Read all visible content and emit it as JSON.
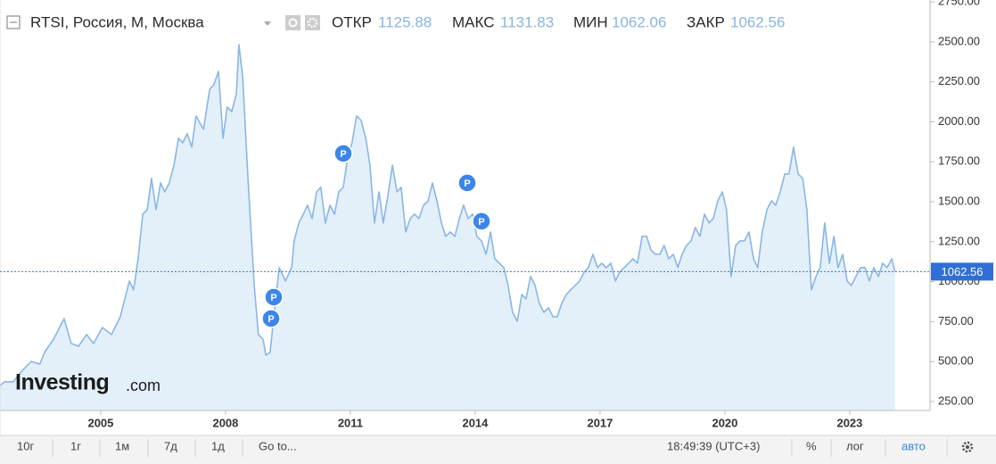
{
  "chart_data": {
    "type": "area",
    "title": "RTSI, Россия, М, Москва",
    "ohlc": [
      {
        "label": "ОТКР",
        "value": 1125.88
      },
      {
        "label": "МАКС",
        "value": 1131.83
      },
      {
        "label": "МИН",
        "value": 1062.06
      },
      {
        "label": "ЗАКР",
        "value": 1062.56
      }
    ],
    "color": "#8ab6e6",
    "fill": "#e3f0fa",
    "grid": false,
    "xlim": [
      2002.58,
      2024.93
    ],
    "xticks": [
      2005,
      2008,
      2011,
      2014,
      2017,
      2020,
      2023
    ],
    "ylim": [
      194,
      2762
    ],
    "yticks": [
      {
        "value": 250,
        "label": "250.00"
      },
      {
        "value": 500,
        "label": "500.00"
      },
      {
        "value": 750,
        "label": "750.00"
      },
      {
        "value": 1000,
        "label": "1000.00"
      },
      {
        "value": 1250,
        "label": "1250.00"
      },
      {
        "value": 1500,
        "label": "1500.00"
      },
      {
        "value": 1750,
        "label": "1750.00"
      },
      {
        "value": 2000,
        "label": "2000.00"
      },
      {
        "value": 2250,
        "label": "2250.00"
      },
      {
        "value": 2500,
        "label": "2500.00"
      },
      {
        "value": 2750,
        "label": "2750.00"
      }
    ],
    "x": [
      2002.58,
      2002.69,
      2002.9,
      2003.12,
      2003.33,
      2003.54,
      2003.65,
      2003.87,
      2004.12,
      2004.29,
      2004.47,
      2004.66,
      2004.83,
      2005.04,
      2005.26,
      2005.47,
      2005.69,
      2005.79,
      2005.9,
      2006.01,
      2006.12,
      2006.22,
      2006.33,
      2006.44,
      2006.54,
      2006.65,
      2006.76,
      2006.87,
      2006.97,
      2007.08,
      2007.19,
      2007.29,
      2007.47,
      2007.62,
      2007.72,
      2007.83,
      2007.94,
      2008.04,
      2008.15,
      2008.26,
      2008.32,
      2008.41,
      2008.54,
      2008.69,
      2008.79,
      2008.9,
      2008.97,
      2009.07,
      2009.16,
      2009.29,
      2009.44,
      2009.59,
      2009.65,
      2009.76,
      2009.87,
      2009.97,
      2010.08,
      2010.19,
      2010.29,
      2010.4,
      2010.51,
      2010.62,
      2010.72,
      2010.83,
      2010.94,
      2011.04,
      2011.15,
      2011.26,
      2011.37,
      2011.47,
      2011.58,
      2011.69,
      2011.79,
      2011.9,
      2012.01,
      2012.12,
      2012.22,
      2012.33,
      2012.44,
      2012.54,
      2012.65,
      2012.76,
      2012.87,
      2012.97,
      2013.08,
      2013.19,
      2013.29,
      2013.4,
      2013.51,
      2013.62,
      2013.72,
      2013.83,
      2013.94,
      2014.04,
      2014.15,
      2014.26,
      2014.37,
      2014.47,
      2014.58,
      2014.69,
      2014.79,
      2014.9,
      2015.01,
      2015.12,
      2015.22,
      2015.33,
      2015.44,
      2015.54,
      2015.65,
      2015.76,
      2015.87,
      2015.97,
      2016.08,
      2016.19,
      2016.29,
      2016.4,
      2016.51,
      2016.62,
      2016.72,
      2016.83,
      2016.94,
      2017.04,
      2017.15,
      2017.26,
      2017.37,
      2017.47,
      2017.58,
      2017.69,
      2017.79,
      2017.9,
      2018.01,
      2018.12,
      2018.22,
      2018.33,
      2018.44,
      2018.54,
      2018.65,
      2018.76,
      2018.87,
      2018.97,
      2019.08,
      2019.19,
      2019.29,
      2019.4,
      2019.51,
      2019.62,
      2019.72,
      2019.83,
      2019.94,
      2020.04,
      2020.15,
      2020.26,
      2020.37,
      2020.47,
      2020.58,
      2020.69,
      2020.79,
      2020.9,
      2021.01,
      2021.12,
      2021.22,
      2021.33,
      2021.44,
      2021.54,
      2021.65,
      2021.76,
      2021.87,
      2021.97,
      2022.08,
      2022.19,
      2022.29,
      2022.4,
      2022.51,
      2022.62,
      2022.72,
      2022.83,
      2022.94,
      2023.04,
      2023.15,
      2023.26,
      2023.37,
      2023.47,
      2023.58,
      2023.69,
      2023.79,
      2023.9,
      2024.01,
      2024.09
    ],
    "values": [
      350,
      373,
      373,
      445,
      501,
      484,
      557,
      641,
      769,
      613,
      596,
      669,
      613,
      713,
      669,
      780,
      1004,
      948,
      1143,
      1422,
      1450,
      1646,
      1450,
      1618,
      1562,
      1618,
      1729,
      1897,
      1869,
      1925,
      1841,
      2036,
      1953,
      2204,
      2232,
      2316,
      1897,
      2092,
      2064,
      2176,
      2483,
      2288,
      1646,
      976,
      669,
      641,
      540,
      557,
      780,
      1088,
      1004,
      1088,
      1255,
      1367,
      1422,
      1478,
      1395,
      1562,
      1590,
      1367,
      1478,
      1422,
      1562,
      1590,
      1785,
      1869,
      2036,
      2008,
      1897,
      1729,
      1367,
      1562,
      1367,
      1534,
      1729,
      1562,
      1590,
      1311,
      1395,
      1422,
      1395,
      1478,
      1506,
      1618,
      1506,
      1367,
      1283,
      1311,
      1283,
      1395,
      1478,
      1395,
      1422,
      1283,
      1255,
      1171,
      1311,
      1143,
      1115,
      1088,
      976,
      808,
      752,
      920,
      892,
      1032,
      976,
      864,
      808,
      836,
      780,
      780,
      864,
      920,
      948,
      976,
      1004,
      1060,
      1088,
      1171,
      1088,
      1115,
      1088,
      1115,
      1004,
      1060,
      1088,
      1115,
      1143,
      1115,
      1283,
      1283,
      1199,
      1171,
      1171,
      1227,
      1143,
      1171,
      1088,
      1171,
      1227,
      1255,
      1339,
      1283,
      1422,
      1367,
      1395,
      1506,
      1562,
      1450,
      1032,
      1227,
      1255,
      1255,
      1311,
      1143,
      1088,
      1311,
      1450,
      1506,
      1478,
      1562,
      1674,
      1674,
      1841,
      1674,
      1646,
      1450,
      948,
      1032,
      1088,
      1367,
      1115,
      1283,
      1088,
      1171,
      1004,
      976,
      1032,
      1088,
      1088,
      1004,
      1088,
      1032,
      1115,
      1088,
      1143,
      1062.56
    ]
  },
  "logo": {
    "brand": "Investing",
    "suffix": ".com"
  },
  "toolbar": {
    "periods": [
      "10г",
      "1г",
      "1м",
      "7д",
      "1д"
    ],
    "goto": "Go to...",
    "time": "18:49:39 (UTC+3)",
    "percent": "%",
    "log": "лог",
    "auto": "авто"
  }
}
